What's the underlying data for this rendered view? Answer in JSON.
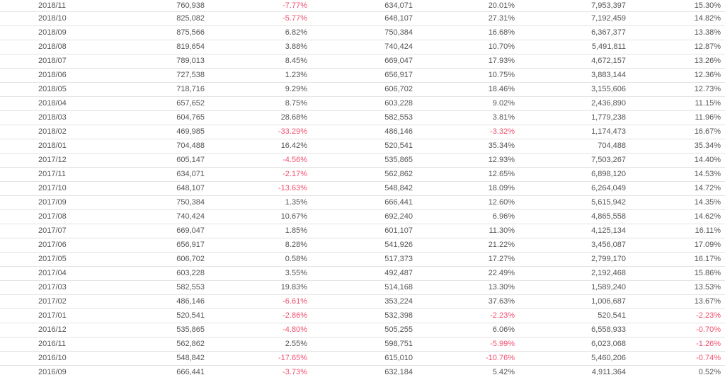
{
  "colors": {
    "negative": "#f0506e",
    "text": "#555555",
    "divider": "#e3e3e3"
  },
  "rows": [
    [
      "2018/11",
      "760,938",
      "-7.77%",
      "634,071",
      "20.01%",
      "7,953,397",
      "15.30%"
    ],
    [
      "2018/10",
      "825,082",
      "-5.77%",
      "648,107",
      "27.31%",
      "7,192,459",
      "14.82%"
    ],
    [
      "2018/09",
      "875,566",
      "6.82%",
      "750,384",
      "16.68%",
      "6,367,377",
      "13.38%"
    ],
    [
      "2018/08",
      "819,654",
      "3.88%",
      "740,424",
      "10.70%",
      "5,491,811",
      "12.87%"
    ],
    [
      "2018/07",
      "789,013",
      "8.45%",
      "669,047",
      "17.93%",
      "4,672,157",
      "13.26%"
    ],
    [
      "2018/06",
      "727,538",
      "1.23%",
      "656,917",
      "10.75%",
      "3,883,144",
      "12.36%"
    ],
    [
      "2018/05",
      "718,716",
      "9.29%",
      "606,702",
      "18.46%",
      "3,155,606",
      "12.73%"
    ],
    [
      "2018/04",
      "657,652",
      "8.75%",
      "603,228",
      "9.02%",
      "2,436,890",
      "11.15%"
    ],
    [
      "2018/03",
      "604,765",
      "28.68%",
      "582,553",
      "3.81%",
      "1,779,238",
      "11.96%"
    ],
    [
      "2018/02",
      "469,985",
      "-33.29%",
      "486,146",
      "-3.32%",
      "1,174,473",
      "16.67%"
    ],
    [
      "2018/01",
      "704,488",
      "16.42%",
      "520,541",
      "35.34%",
      "704,488",
      "35.34%"
    ],
    [
      "2017/12",
      "605,147",
      "-4.56%",
      "535,865",
      "12.93%",
      "7,503,267",
      "14.40%"
    ],
    [
      "2017/11",
      "634,071",
      "-2.17%",
      "562,862",
      "12.65%",
      "6,898,120",
      "14.53%"
    ],
    [
      "2017/10",
      "648,107",
      "-13.63%",
      "548,842",
      "18.09%",
      "6,264,049",
      "14.72%"
    ],
    [
      "2017/09",
      "750,384",
      "1.35%",
      "666,441",
      "12.60%",
      "5,615,942",
      "14.35%"
    ],
    [
      "2017/08",
      "740,424",
      "10.67%",
      "692,240",
      "6.96%",
      "4,865,558",
      "14.62%"
    ],
    [
      "2017/07",
      "669,047",
      "1.85%",
      "601,107",
      "11.30%",
      "4,125,134",
      "16.11%"
    ],
    [
      "2017/06",
      "656,917",
      "8.28%",
      "541,926",
      "21.22%",
      "3,456,087",
      "17.09%"
    ],
    [
      "2017/05",
      "606,702",
      "0.58%",
      "517,373",
      "17.27%",
      "2,799,170",
      "16.17%"
    ],
    [
      "2017/04",
      "603,228",
      "3.55%",
      "492,487",
      "22.49%",
      "2,192,468",
      "15.86%"
    ],
    [
      "2017/03",
      "582,553",
      "19.83%",
      "514,168",
      "13.30%",
      "1,589,240",
      "13.53%"
    ],
    [
      "2017/02",
      "486,146",
      "-6.61%",
      "353,224",
      "37.63%",
      "1,006,687",
      "13.67%"
    ],
    [
      "2017/01",
      "520,541",
      "-2.86%",
      "532,398",
      "-2.23%",
      "520,541",
      "-2.23%"
    ],
    [
      "2016/12",
      "535,865",
      "-4.80%",
      "505,255",
      "6.06%",
      "6,558,933",
      "-0.70%"
    ],
    [
      "2016/11",
      "562,862",
      "2.55%",
      "598,751",
      "-5.99%",
      "6,023,068",
      "-1.26%"
    ],
    [
      "2016/10",
      "548,842",
      "-17.65%",
      "615,010",
      "-10.76%",
      "5,460,206",
      "-0.74%"
    ],
    [
      "2016/09",
      "666,441",
      "-3.73%",
      "632,184",
      "5.42%",
      "4,911,364",
      "0.52%"
    ]
  ]
}
